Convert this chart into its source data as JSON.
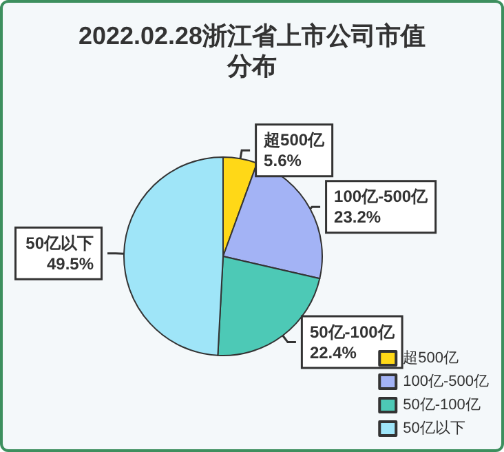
{
  "chart_data": {
    "type": "pie",
    "title": "2022.02.28浙江省上市公司市值分布",
    "categories": [
      "超500亿",
      "100亿-500亿",
      "50亿-100亿",
      "50亿以下"
    ],
    "values": [
      5.6,
      23.2,
      22.4,
      49.5
    ],
    "colors": [
      "#ffd817",
      "#a3b3f5",
      "#4dc9b6",
      "#9fe5f8"
    ],
    "value_labels": [
      "5.6%",
      "23.2%",
      "22.4%",
      "49.5%"
    ],
    "legend": "bottom right"
  }
}
